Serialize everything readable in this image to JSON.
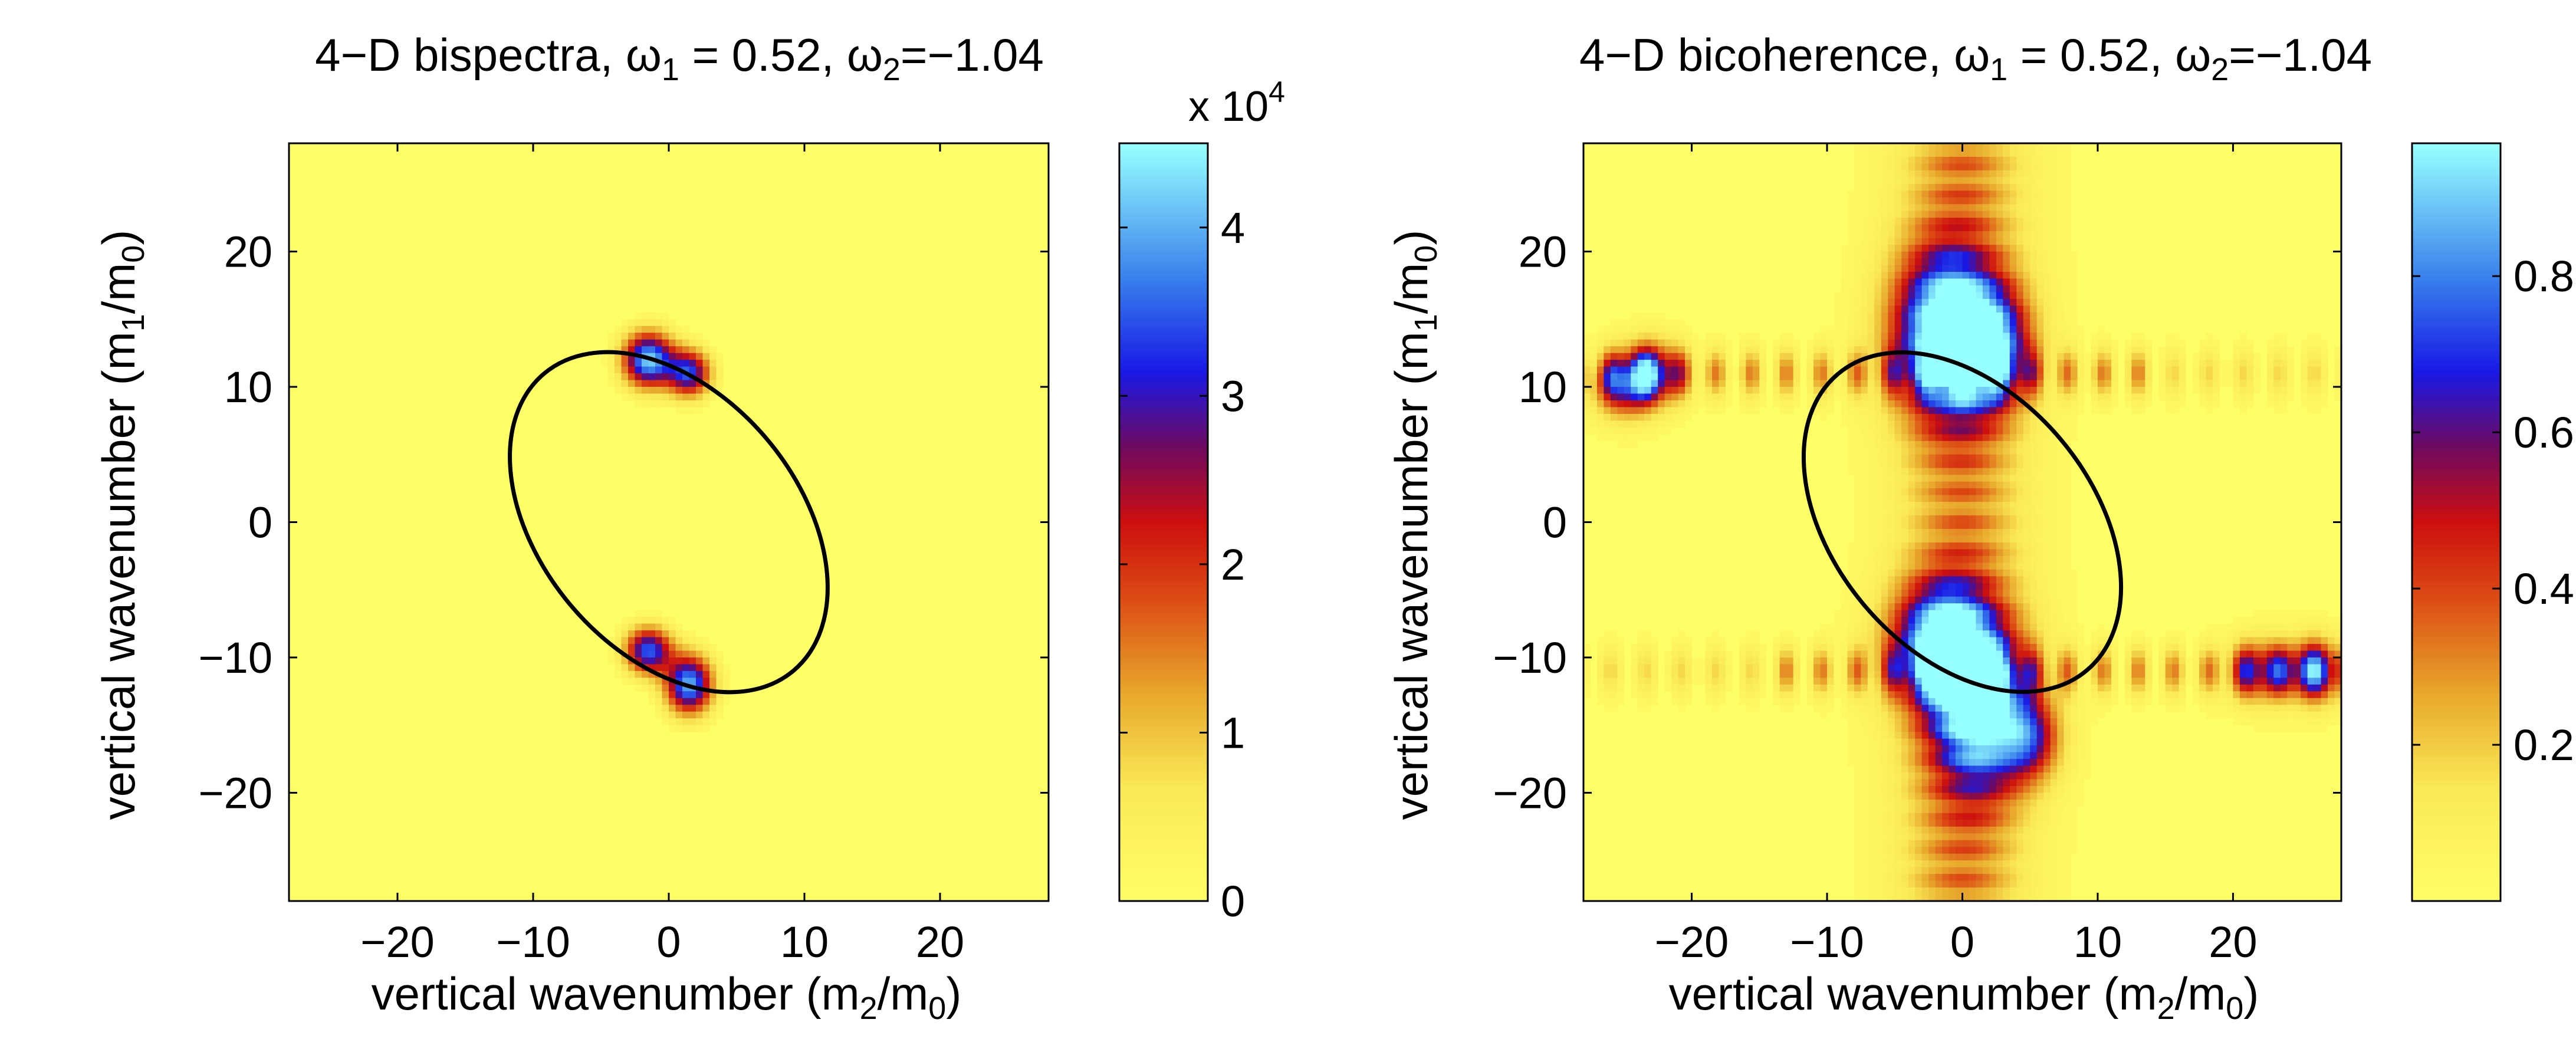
{
  "chart_data": [
    {
      "type": "heatmap",
      "title": "4−D bispectra, ω₁ = 0.52, ω₂=−1.04",
      "title_parts": {
        "prefix": "4−D bispectra, ",
        "w": "ω",
        "sub1": "1",
        "mid": " = 0.52, ",
        "sub2": "2",
        "suffix": "=−1.04"
      },
      "xlabel": "vertical wavenumber (m2/m0)",
      "ylabel": "vertical wavenumber (m1/m0)",
      "xlabel_parts": {
        "prefix": "vertical wavenumber (m",
        "sub_a": "2",
        "mid": "/m",
        "sub_b": "0",
        "suffix": ")"
      },
      "ylabel_parts": {
        "prefix": "vertical wavenumber (m",
        "sub_a": "1",
        "mid": "/m",
        "sub_b": "0",
        "suffix": ")"
      },
      "xlim": [
        -28,
        28
      ],
      "ylim": [
        -28,
        28
      ],
      "xticks": [
        -20,
        -10,
        0,
        10,
        20
      ],
      "yticks": [
        -20,
        -10,
        0,
        10,
        20
      ],
      "xtick_labels": [
        "−20",
        "−10",
        "0",
        "10",
        "20"
      ],
      "ytick_labels": [
        "−20",
        "−10",
        "0",
        "10",
        "20"
      ],
      "colorbar": {
        "min": 0,
        "max": 45000,
        "ticks": [
          0,
          10000,
          20000,
          30000,
          40000
        ],
        "tick_labels": [
          "0",
          "1",
          "2",
          "3",
          "4"
        ],
        "multiplier_text": "x 10",
        "multiplier_exp": "4"
      },
      "blobs": [
        {
          "x": -1.5,
          "y": 12,
          "sx": 1.3,
          "sy": 1.4,
          "amp": 42000
        },
        {
          "x": 1.5,
          "y": 11,
          "sx": 1.1,
          "sy": 1.2,
          "amp": 33000
        },
        {
          "x": -1.5,
          "y": -9.5,
          "sx": 1.2,
          "sy": 1.2,
          "amp": 35000
        },
        {
          "x": 1.5,
          "y": -12,
          "sx": 1.2,
          "sy": 1.5,
          "amp": 40000
        }
      ],
      "ellipse": {
        "center": [
          0,
          0
        ],
        "semi_major": 14.3,
        "semi_minor": 9.5,
        "angle_deg": -50
      }
    },
    {
      "type": "heatmap",
      "title": "4−D bicoherence, ω₁ = 0.52, ω₂=−1.04",
      "title_parts": {
        "prefix": "4−D bicoherence, ",
        "w": "ω",
        "sub1": "1",
        "mid": " = 0.52, ",
        "sub2": "2",
        "suffix": "=−1.04"
      },
      "xlabel": "vertical wavenumber (m2/m0)",
      "ylabel": "vertical wavenumber (m1/m0)",
      "xlabel_parts": {
        "prefix": "vertical wavenumber (m",
        "sub_a": "2",
        "mid": "/m",
        "sub_b": "0",
        "suffix": ")"
      },
      "ylabel_parts": {
        "prefix": "vertical wavenumber (m",
        "sub_a": "1",
        "mid": "/m",
        "sub_b": "0",
        "suffix": ")"
      },
      "xlim": [
        -28,
        28
      ],
      "ylim": [
        -28,
        28
      ],
      "xticks": [
        -20,
        -10,
        0,
        10,
        20
      ],
      "yticks": [
        -20,
        -10,
        0,
        10,
        20
      ],
      "xtick_labels": [
        "−20",
        "−10",
        "0",
        "10",
        "20"
      ],
      "ytick_labels": [
        "−20",
        "−10",
        "0",
        "10",
        "20"
      ],
      "colorbar": {
        "min": 0,
        "max": 0.97,
        "ticks": [
          0.2,
          0.4,
          0.6,
          0.8
        ],
        "tick_labels": [
          "0.2",
          "0.4",
          "0.6",
          "0.8"
        ]
      },
      "blobs": [
        {
          "x": -1.5,
          "y": 14,
          "sx": 2.5,
          "sy": 4,
          "amp": 0.9
        },
        {
          "x": 2,
          "y": 13,
          "sx": 2,
          "sy": 3,
          "amp": 0.75
        },
        {
          "x": -1.5,
          "y": -9,
          "sx": 2.5,
          "sy": 3,
          "amp": 0.9
        },
        {
          "x": 1.5,
          "y": -14,
          "sx": 2.5,
          "sy": 4,
          "amp": 0.8
        },
        {
          "x": 5,
          "y": -16,
          "sx": 1.5,
          "sy": 2,
          "amp": 0.45
        },
        {
          "x": -23,
          "y": 11,
          "sx": 1.5,
          "sy": 1.5,
          "amp": 0.65
        },
        {
          "x": 22,
          "y": -11,
          "sx": 1.5,
          "sy": 1.5,
          "amp": 0.5
        },
        {
          "x": 26,
          "y": -11,
          "sx": 1.5,
          "sy": 1.5,
          "amp": 0.65
        },
        {
          "x": -25,
          "y": 10,
          "sx": 1.5,
          "sy": 1.5,
          "amp": 0.5
        }
      ],
      "ellipse": {
        "center": [
          0,
          0
        ],
        "semi_major": 14.3,
        "semi_minor": 9.5,
        "angle_deg": -50
      }
    }
  ]
}
